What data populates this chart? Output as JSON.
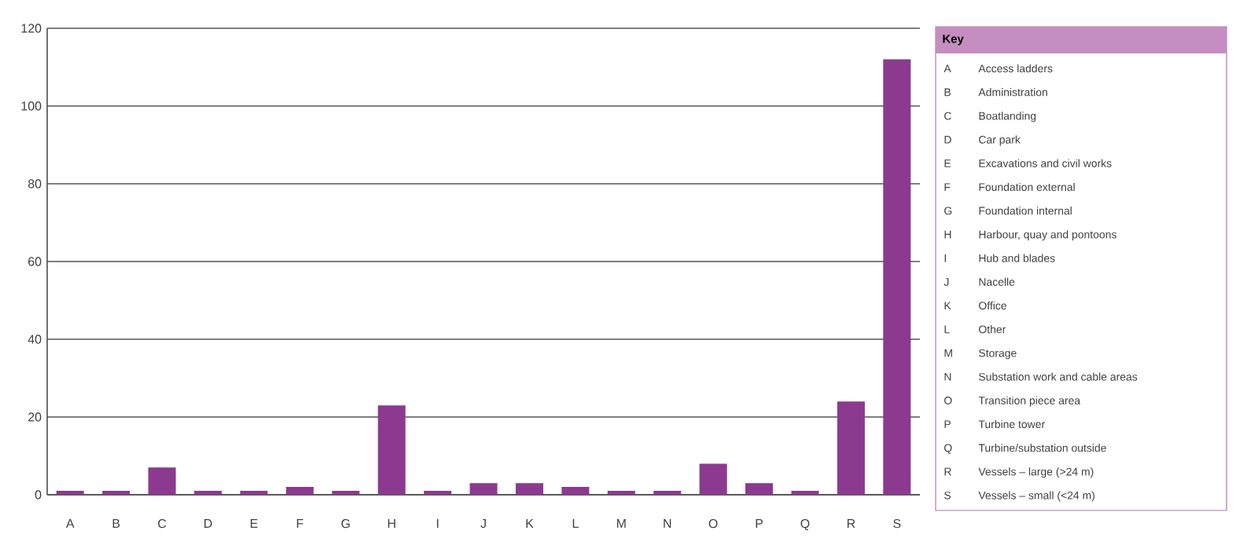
{
  "chart_data": {
    "type": "bar",
    "categories": [
      "A",
      "B",
      "C",
      "D",
      "E",
      "F",
      "G",
      "H",
      "I",
      "J",
      "K",
      "L",
      "M",
      "N",
      "O",
      "P",
      "Q",
      "R",
      "S"
    ],
    "values": [
      1,
      1,
      7,
      1,
      1,
      2,
      1,
      23,
      1,
      3,
      3,
      2,
      1,
      1,
      8,
      3,
      1,
      24,
      112
    ],
    "color": "#8b3a8f",
    "ylim": [
      0,
      120
    ],
    "yticks": [
      0,
      20,
      40,
      60,
      80,
      100,
      120
    ],
    "grid": "y",
    "legend_title": "Key",
    "annotations": [
      "Access ladders",
      "Administration",
      "Boatlanding",
      "Car park",
      "Excavations and civil works",
      "Foundation external",
      "Foundation internal",
      "Harbour, quay and pontoons",
      "Hub and blades",
      "Nacelle",
      "Office",
      "Other",
      "Storage",
      "Substation work and cable areas",
      "Transition piece area",
      "Turbine tower",
      "Turbine/substation outside",
      "Vessels – large (>24 m)",
      "Vessels – small (<24 m)"
    ]
  }
}
